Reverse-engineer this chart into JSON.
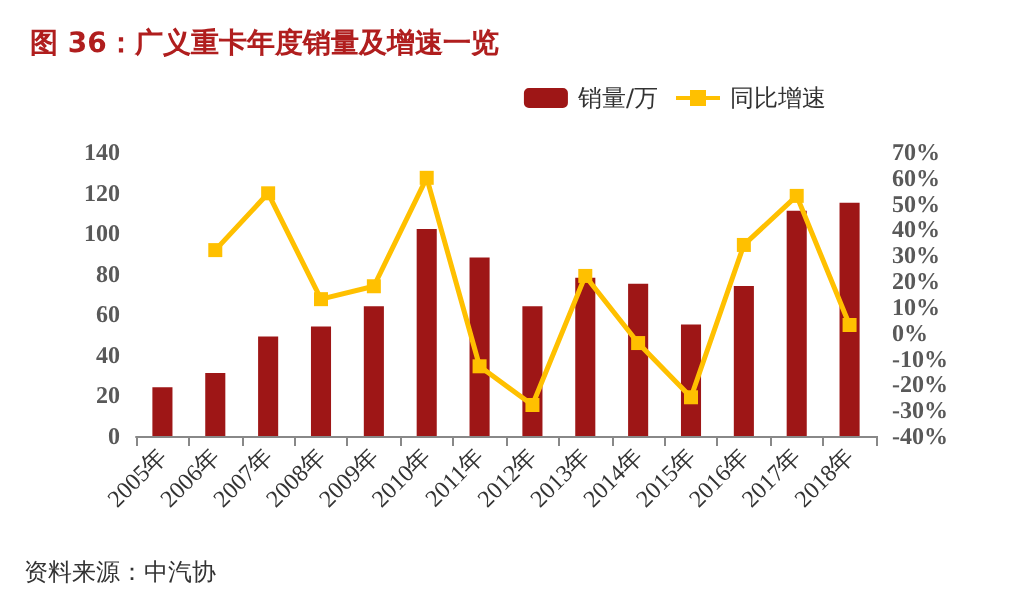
{
  "chart_data": {
    "type": "bar",
    "title": "图 36：广义重卡年度销量及增速一览",
    "categories": [
      "2005年",
      "2006年",
      "2007年",
      "2008年",
      "2009年",
      "2010年",
      "2011年",
      "2012年",
      "2013年",
      "2014年",
      "2015年",
      "2016年",
      "2017年",
      "2018年"
    ],
    "series": [
      {
        "name": "销量/万",
        "color": "#9e1616",
        "values": [
          24,
          31,
          49,
          54,
          64,
          102,
          88,
          64,
          78,
          75,
          55,
          74,
          111,
          115
        ]
      },
      {
        "name": "同比增速",
        "type": "line",
        "axis": "y2",
        "color": "#ffc000",
        "values": [
          null,
          32,
          54,
          13,
          18,
          60,
          -13,
          -28,
          22,
          -4,
          -25,
          34,
          53,
          3
        ]
      }
    ],
    "ylim": [
      0,
      140
    ],
    "yticks": [
      0,
      20,
      40,
      60,
      80,
      100,
      120,
      140
    ],
    "y2lim": [
      -40,
      70
    ],
    "y2ticks": [
      {
        "value": -40,
        "label": "-40%"
      },
      {
        "value": -30,
        "label": "-30%"
      },
      {
        "value": -20,
        "label": "-20%"
      },
      {
        "value": -10,
        "label": "-10%"
      },
      {
        "value": 0,
        "label": "0%"
      },
      {
        "value": 10,
        "label": "10%"
      },
      {
        "value": 20,
        "label": "20%"
      },
      {
        "value": 30,
        "label": "30%"
      },
      {
        "value": 40,
        "label": "40%"
      },
      {
        "value": 50,
        "label": "50%"
      },
      {
        "value": 60,
        "label": "60%"
      },
      {
        "value": 70,
        "label": "70%"
      }
    ],
    "legend": "top right",
    "marker": "square",
    "grid": false,
    "annotations": [
      "资料来源：中汽协"
    ]
  }
}
